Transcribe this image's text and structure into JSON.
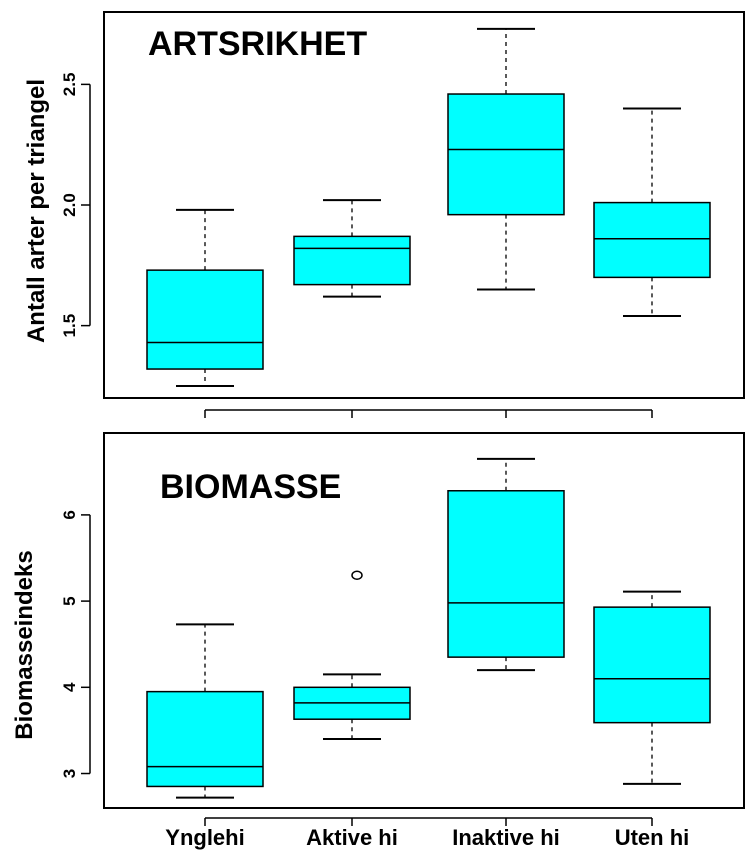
{
  "chart_data": [
    {
      "type": "box",
      "title": "ARTSRIKHET",
      "ylabel": "Antall arter per triangel",
      "xlabel": "",
      "categories": [
        "Ynglehi",
        "Aktive hi",
        "Inaktive hi",
        "Uten hi"
      ],
      "show_category_labels": false,
      "ylim": [
        1.2,
        2.8
      ],
      "yticks": [
        1.5,
        2.0,
        2.5
      ],
      "ytick_labels": [
        "1.5",
        "2.0",
        "2.5"
      ],
      "box_color": "#00ffff",
      "grid": false,
      "boxes": [
        {
          "whisker_low": 1.25,
          "q1": 1.32,
          "median": 1.43,
          "q3": 1.73,
          "whisker_high": 1.98,
          "outliers": []
        },
        {
          "whisker_low": 1.62,
          "q1": 1.67,
          "median": 1.82,
          "q3": 1.87,
          "whisker_high": 2.02,
          "outliers": []
        },
        {
          "whisker_low": 1.65,
          "q1": 1.96,
          "median": 2.23,
          "q3": 2.46,
          "whisker_high": 2.73,
          "outliers": []
        },
        {
          "whisker_low": 1.54,
          "q1": 1.7,
          "median": 1.86,
          "q3": 2.01,
          "whisker_high": 2.4,
          "outliers": []
        }
      ]
    },
    {
      "type": "box",
      "title": "BIOMASSE",
      "ylabel": "Biomasseindeks",
      "xlabel": "",
      "categories": [
        "Ynglehi",
        "Aktive hi",
        "Inaktive hi",
        "Uten hi"
      ],
      "show_category_labels": true,
      "ylim": [
        2.6,
        6.95
      ],
      "yticks": [
        3,
        4,
        5,
        6
      ],
      "ytick_labels": [
        "3",
        "4",
        "5",
        "6"
      ],
      "box_color": "#00ffff",
      "grid": false,
      "boxes": [
        {
          "whisker_low": 2.72,
          "q1": 2.85,
          "median": 3.08,
          "q3": 3.95,
          "whisker_high": 4.73,
          "outliers": []
        },
        {
          "whisker_low": 3.4,
          "q1": 3.63,
          "median": 3.82,
          "q3": 4.0,
          "whisker_high": 4.15,
          "outliers": [
            5.3
          ]
        },
        {
          "whisker_low": 4.2,
          "q1": 4.35,
          "median": 4.98,
          "q3": 6.28,
          "whisker_high": 6.65,
          "outliers": []
        },
        {
          "whisker_low": 2.88,
          "q1": 3.59,
          "median": 4.1,
          "q3": 4.93,
          "whisker_high": 5.11,
          "outliers": []
        }
      ]
    }
  ]
}
